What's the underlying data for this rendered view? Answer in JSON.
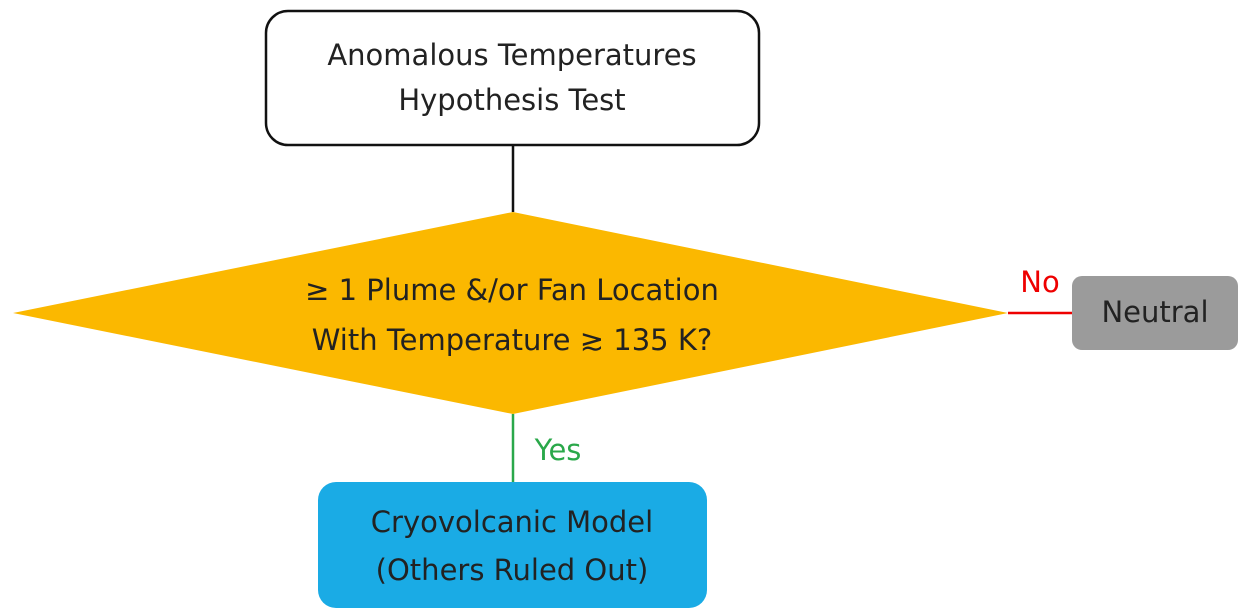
{
  "nodes": [
    {
      "label": [
        "Anomalous Temperatures",
        "Hypothesis Test"
      ]
    },
    {
      "label": [
        "≥ 1 Plume &/or Fan Location",
        "With Temperature ≳ 135 K?"
      ]
    },
    {
      "label": [
        "Neutral"
      ]
    },
    {
      "label": [
        "Cryovolcanic Model",
        "(Others Ruled Out)"
      ]
    }
  ],
  "edges": [
    {
      "label": "No"
    },
    {
      "label": "Yes"
    }
  ]
}
